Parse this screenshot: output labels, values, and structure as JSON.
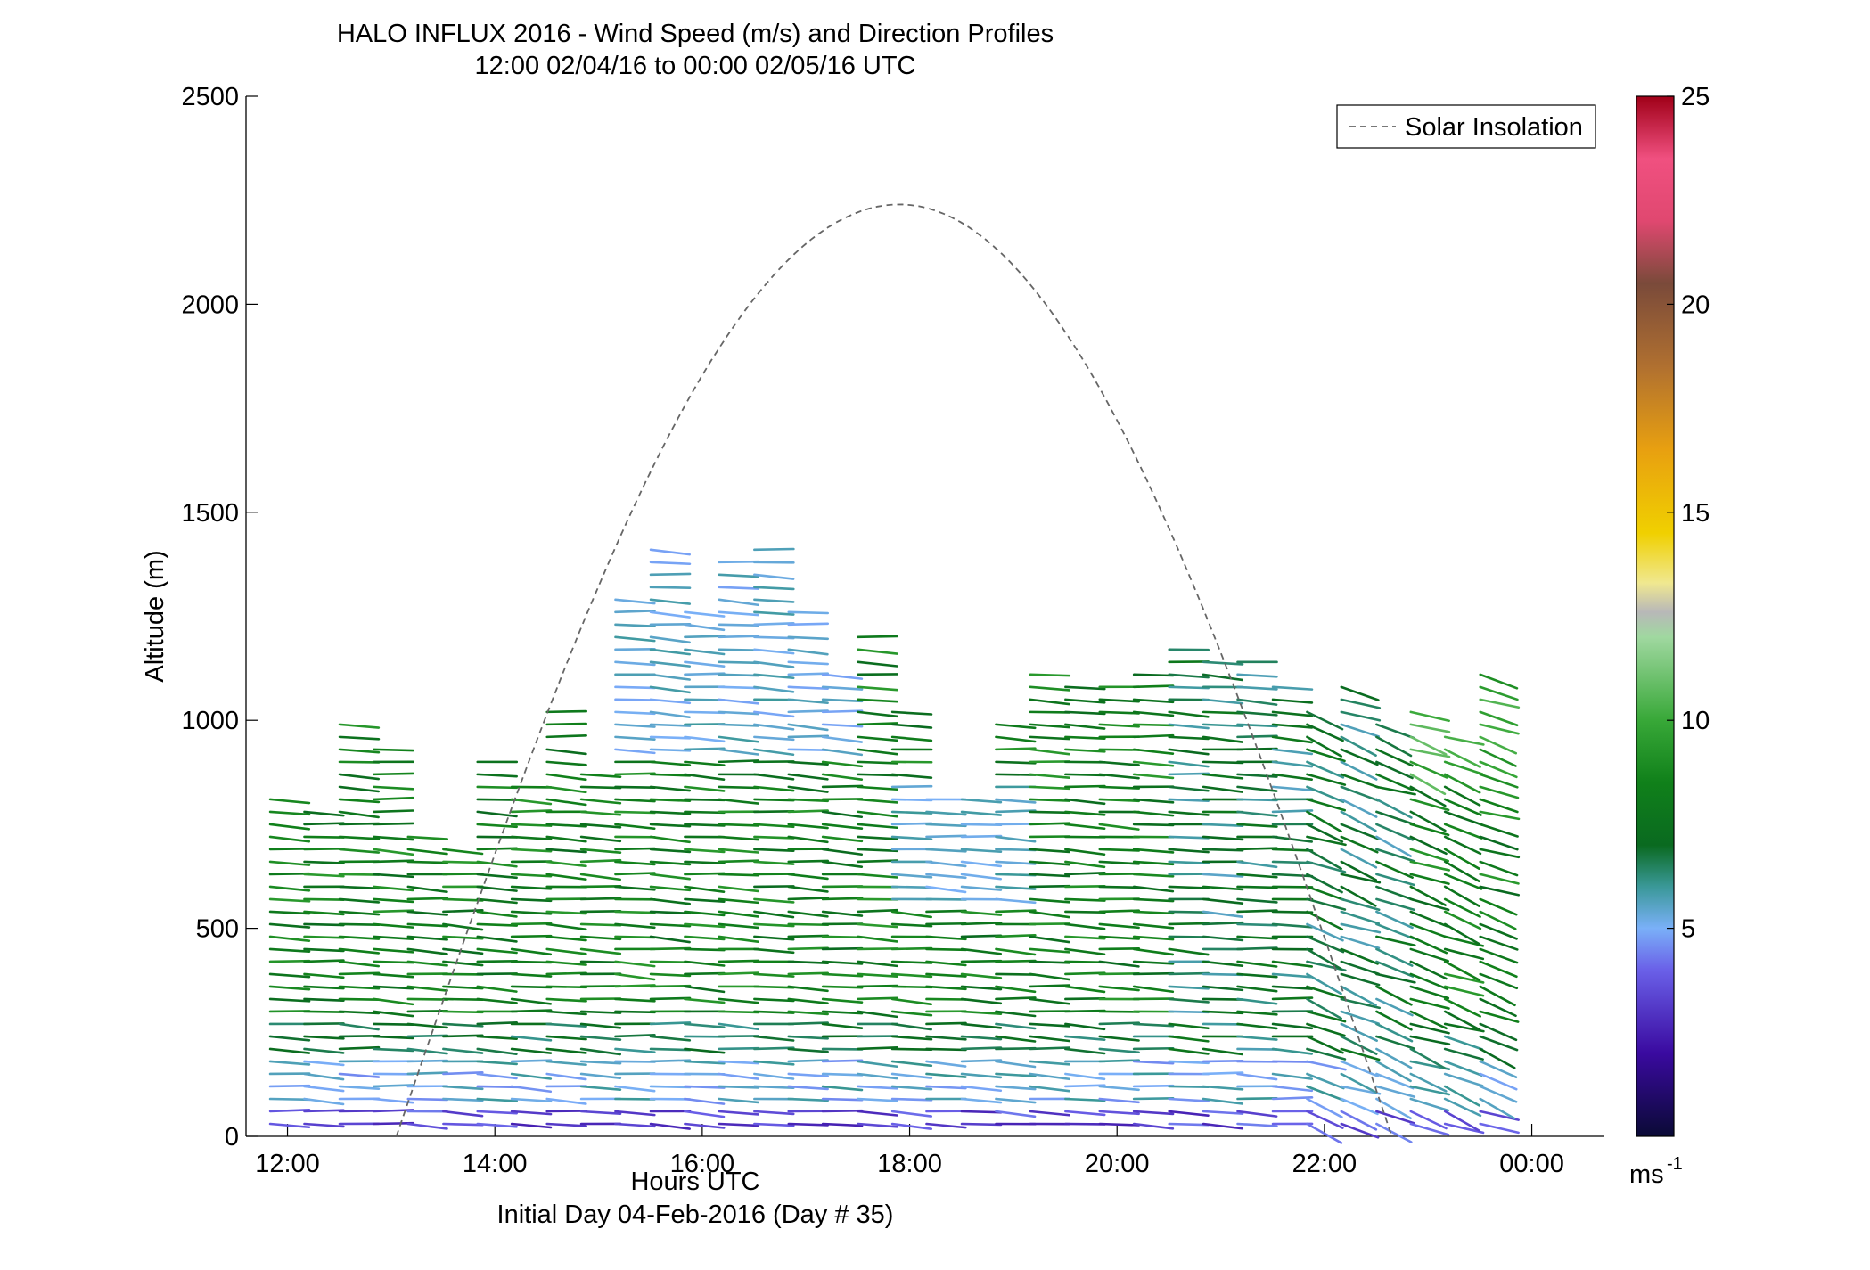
{
  "chart_data": {
    "type": "wind-barb-profile",
    "title": "HALO INFLUX 2016 - Wind Speed (m/s) and Direction Profiles",
    "subtitle": "12:00 02/04/16 to 00:00 02/05/16  UTC",
    "xlabel": "Hours UTC",
    "xlabel_secondary": "Initial Day 04-Feb-2016 (Day # 35)",
    "ylabel": "Altitude (m)",
    "xlim": [
      11.6,
      24.7
    ],
    "ylim": [
      0,
      2500
    ],
    "x_ticks": [
      {
        "value": 12,
        "label": "12:00"
      },
      {
        "value": 14,
        "label": "14:00"
      },
      {
        "value": 16,
        "label": "16:00"
      },
      {
        "value": 18,
        "label": "18:00"
      },
      {
        "value": 20,
        "label": "20:00"
      },
      {
        "value": 22,
        "label": "22:00"
      },
      {
        "value": 24,
        "label": "00:00"
      }
    ],
    "y_ticks": [
      0,
      500,
      1000,
      1500,
      2000,
      2500
    ],
    "legend": {
      "label": "Solar Insolation",
      "position": "top-right",
      "style": "dashed",
      "color": "#666666"
    },
    "solar_insolation": {
      "peak_time": 17.9,
      "peak_altitude": 2240,
      "start_time": 13.05,
      "end_time": 22.65
    },
    "colorbar": {
      "min": 0,
      "max": 25,
      "ticks": [
        5,
        10,
        15,
        20,
        25
      ],
      "unit_label": "ms",
      "unit_exponent": "-1",
      "stops": [
        {
          "v": 0,
          "c": "#0a0a35"
        },
        {
          "v": 2,
          "c": "#3a0aa0"
        },
        {
          "v": 4,
          "c": "#6a60e8"
        },
        {
          "v": 5,
          "c": "#7ab0f8"
        },
        {
          "v": 6,
          "c": "#3a9898"
        },
        {
          "v": 7,
          "c": "#0a6a20"
        },
        {
          "v": 8.5,
          "c": "#10801a"
        },
        {
          "v": 10,
          "c": "#38a838"
        },
        {
          "v": 12,
          "c": "#a0d8a0"
        },
        {
          "v": 12.6,
          "c": "#b8b8b8"
        },
        {
          "v": 13.3,
          "c": "#f0e890"
        },
        {
          "v": 14.5,
          "c": "#f0d000"
        },
        {
          "v": 16.5,
          "c": "#e8a010"
        },
        {
          "v": 18.5,
          "c": "#b07030"
        },
        {
          "v": 20.5,
          "c": "#7a4a3a"
        },
        {
          "v": 22,
          "c": "#e04870"
        },
        {
          "v": 23.5,
          "c": "#f05080"
        },
        {
          "v": 25,
          "c": "#a00018"
        }
      ]
    },
    "profiles": [
      {
        "t": 11.85,
        "top": 835
      },
      {
        "t": 12.18,
        "top": 790
      },
      {
        "t": 12.52,
        "top": 1000
      },
      {
        "t": 12.85,
        "top": 950
      },
      {
        "t": 13.18,
        "top": 725
      },
      {
        "t": 13.52,
        "top": 700
      },
      {
        "t": 13.85,
        "top": 910
      },
      {
        "t": 14.18,
        "top": 860
      },
      {
        "t": 14.52,
        "top": 1035
      },
      {
        "t": 14.85,
        "top": 875
      },
      {
        "t": 15.18,
        "top": 1295
      },
      {
        "t": 15.52,
        "top": 1410
      },
      {
        "t": 15.85,
        "top": 1285
      },
      {
        "t": 16.18,
        "top": 1395
      },
      {
        "t": 16.52,
        "top": 1410
      },
      {
        "t": 16.85,
        "top": 1280
      },
      {
        "t": 17.18,
        "top": 1120
      },
      {
        "t": 17.52,
        "top": 1205
      },
      {
        "t": 17.85,
        "top": 1040
      },
      {
        "t": 18.18,
        "top": 830
      },
      {
        "t": 18.52,
        "top": 830
      },
      {
        "t": 18.85,
        "top": 1010
      },
      {
        "t": 19.18,
        "top": 1125
      },
      {
        "t": 19.52,
        "top": 1090
      },
      {
        "t": 19.85,
        "top": 1100
      },
      {
        "t": 20.18,
        "top": 1135
      },
      {
        "t": 20.52,
        "top": 1170
      },
      {
        "t": 20.85,
        "top": 1160
      },
      {
        "t": 21.18,
        "top": 1150
      },
      {
        "t": 21.52,
        "top": 1100
      },
      {
        "t": 21.85,
        "top": 1040
      },
      {
        "t": 22.18,
        "top": 1080
      },
      {
        "t": 22.52,
        "top": 1010
      },
      {
        "t": 22.85,
        "top": 1040
      },
      {
        "t": 23.18,
        "top": 980
      },
      {
        "t": 23.52,
        "top": 1120
      }
    ],
    "range_gate_spacing_m": 30
  }
}
